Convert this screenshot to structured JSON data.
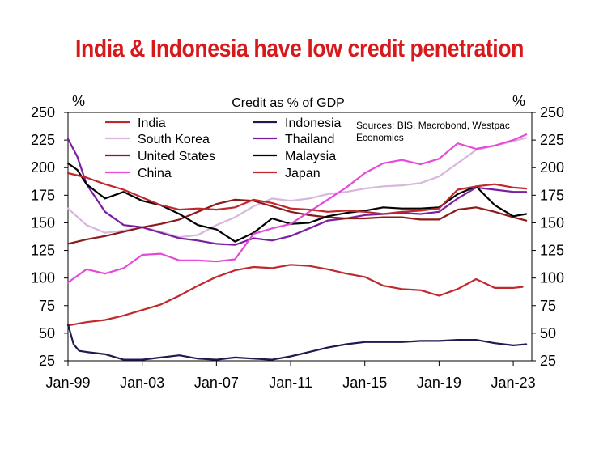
{
  "title": "India & Indonesia have low credit penetration",
  "colors": {
    "title": "#d7191c"
  },
  "chart_data": {
    "type": "line",
    "subtitle": "Credit as % of GDP",
    "left_unit": "%",
    "right_unit": "%",
    "source": [
      "Sources: BIS, Macrobond, Westpac",
      "Economics"
    ],
    "x_ticks": [
      "Jan-99",
      "Jan-03",
      "Jan-07",
      "Jan-11",
      "Jan-15",
      "Jan-19",
      "Jan-23"
    ],
    "x_range": [
      1999.0,
      2024.0
    ],
    "y_ticks": [
      "250",
      "225",
      "200",
      "175",
      "150",
      "125",
      "100",
      "75",
      "50",
      "25"
    ],
    "ylim": [
      25,
      250
    ],
    "grid": false,
    "legend_position": "top",
    "series": [
      {
        "name": "India",
        "color": "#c0282d",
        "points": [
          [
            1999,
            57
          ],
          [
            2000,
            60
          ],
          [
            2001,
            62
          ],
          [
            2002,
            66
          ],
          [
            2003,
            71
          ],
          [
            2004,
            76
          ],
          [
            2005,
            84
          ],
          [
            2006,
            93
          ],
          [
            2007,
            101
          ],
          [
            2008,
            107
          ],
          [
            2009,
            110
          ],
          [
            2010,
            109
          ],
          [
            2011,
            112
          ],
          [
            2012,
            111
          ],
          [
            2013,
            108
          ],
          [
            2014,
            104
          ],
          [
            2015,
            101
          ],
          [
            2016,
            93
          ],
          [
            2017,
            90
          ],
          [
            2018,
            89
          ],
          [
            2019,
            84
          ],
          [
            2020,
            90
          ],
          [
            2021,
            99
          ],
          [
            2022,
            91
          ],
          [
            2023,
            91
          ],
          [
            2023.5,
            92
          ]
        ]
      },
      {
        "name": "Indonesia",
        "color": "#1e1b4f",
        "points": [
          [
            1999,
            58
          ],
          [
            1999.3,
            40
          ],
          [
            1999.6,
            34
          ],
          [
            2000,
            33
          ],
          [
            2001,
            31
          ],
          [
            2002,
            26
          ],
          [
            2003,
            26
          ],
          [
            2004,
            28
          ],
          [
            2005,
            30
          ],
          [
            2006,
            27
          ],
          [
            2007,
            26
          ],
          [
            2008,
            28
          ],
          [
            2009,
            27
          ],
          [
            2010,
            26
          ],
          [
            2011,
            29
          ],
          [
            2012,
            33
          ],
          [
            2013,
            37
          ],
          [
            2014,
            40
          ],
          [
            2015,
            42
          ],
          [
            2016,
            42
          ],
          [
            2017,
            42
          ],
          [
            2018,
            43
          ],
          [
            2019,
            43
          ],
          [
            2020,
            44
          ],
          [
            2021,
            44
          ],
          [
            2022,
            41
          ],
          [
            2023,
            39
          ],
          [
            2023.7,
            40
          ]
        ]
      },
      {
        "name": "South Korea",
        "color": "#d9b6dd",
        "points": [
          [
            1999,
            163
          ],
          [
            2000,
            148
          ],
          [
            2001,
            141
          ],
          [
            2002,
            143
          ],
          [
            2003,
            146
          ],
          [
            2004,
            142
          ],
          [
            2005,
            137
          ],
          [
            2006,
            139
          ],
          [
            2007,
            148
          ],
          [
            2008,
            155
          ],
          [
            2009,
            165
          ],
          [
            2010,
            172
          ],
          [
            2011,
            170
          ],
          [
            2012,
            172
          ],
          [
            2013,
            176
          ],
          [
            2014,
            178
          ],
          [
            2015,
            181
          ],
          [
            2016,
            183
          ],
          [
            2017,
            184
          ],
          [
            2018,
            186
          ],
          [
            2019,
            192
          ],
          [
            2020,
            204
          ],
          [
            2021,
            216
          ],
          [
            2022,
            220
          ],
          [
            2023,
            224
          ],
          [
            2023.7,
            227
          ]
        ]
      },
      {
        "name": "Thailand",
        "color": "#7b1fa2",
        "points": [
          [
            1999,
            226
          ],
          [
            1999.5,
            210
          ],
          [
            2000,
            185
          ],
          [
            2001,
            160
          ],
          [
            2002,
            148
          ],
          [
            2003,
            146
          ],
          [
            2004,
            141
          ],
          [
            2005,
            136
          ],
          [
            2006,
            134
          ],
          [
            2007,
            131
          ],
          [
            2008,
            130
          ],
          [
            2009,
            136
          ],
          [
            2010,
            134
          ],
          [
            2011,
            138
          ],
          [
            2012,
            145
          ],
          [
            2013,
            152
          ],
          [
            2014,
            154
          ],
          [
            2015,
            157
          ],
          [
            2016,
            158
          ],
          [
            2017,
            159
          ],
          [
            2018,
            158
          ],
          [
            2019,
            160
          ],
          [
            2020,
            172
          ],
          [
            2021,
            182
          ],
          [
            2022,
            180
          ],
          [
            2023,
            178
          ],
          [
            2023.7,
            178
          ]
        ]
      },
      {
        "name": "United States",
        "color": "#8b1a1a",
        "points": [
          [
            1999,
            131
          ],
          [
            2000,
            135
          ],
          [
            2001,
            138
          ],
          [
            2002,
            142
          ],
          [
            2003,
            146
          ],
          [
            2004,
            149
          ],
          [
            2005,
            153
          ],
          [
            2006,
            160
          ],
          [
            2007,
            167
          ],
          [
            2008,
            171
          ],
          [
            2009,
            170
          ],
          [
            2010,
            165
          ],
          [
            2011,
            160
          ],
          [
            2012,
            157
          ],
          [
            2013,
            155
          ],
          [
            2014,
            154
          ],
          [
            2015,
            154
          ],
          [
            2016,
            155
          ],
          [
            2017,
            155
          ],
          [
            2018,
            153
          ],
          [
            2019,
            153
          ],
          [
            2020,
            162
          ],
          [
            2021,
            164
          ],
          [
            2022,
            160
          ],
          [
            2023,
            155
          ],
          [
            2023.7,
            152
          ]
        ]
      },
      {
        "name": "Malaysia",
        "color": "#000000",
        "points": [
          [
            1999,
            204
          ],
          [
            1999.5,
            198
          ],
          [
            2000,
            185
          ],
          [
            2001,
            172
          ],
          [
            2002,
            178
          ],
          [
            2003,
            170
          ],
          [
            2004,
            166
          ],
          [
            2005,
            158
          ],
          [
            2006,
            148
          ],
          [
            2007,
            144
          ],
          [
            2008,
            133
          ],
          [
            2009,
            141
          ],
          [
            2010,
            154
          ],
          [
            2011,
            149
          ],
          [
            2012,
            150
          ],
          [
            2013,
            156
          ],
          [
            2014,
            159
          ],
          [
            2015,
            161
          ],
          [
            2016,
            164
          ],
          [
            2017,
            163
          ],
          [
            2018,
            163
          ],
          [
            2019,
            164
          ],
          [
            2020,
            176
          ],
          [
            2021,
            183
          ],
          [
            2022,
            166
          ],
          [
            2023,
            156
          ],
          [
            2023.7,
            158
          ]
        ]
      },
      {
        "name": "China",
        "color": "#e64ad8",
        "points": [
          [
            1999,
            96
          ],
          [
            2000,
            108
          ],
          [
            2001,
            104
          ],
          [
            2002,
            109
          ],
          [
            2003,
            121
          ],
          [
            2004,
            122
          ],
          [
            2005,
            116
          ],
          [
            2006,
            116
          ],
          [
            2007,
            115
          ],
          [
            2008,
            117
          ],
          [
            2009,
            140
          ],
          [
            2010,
            145
          ],
          [
            2011,
            149
          ],
          [
            2012,
            160
          ],
          [
            2013,
            171
          ],
          [
            2014,
            182
          ],
          [
            2015,
            195
          ],
          [
            2016,
            204
          ],
          [
            2017,
            207
          ],
          [
            2018,
            203
          ],
          [
            2019,
            208
          ],
          [
            2020,
            222
          ],
          [
            2021,
            217
          ],
          [
            2022,
            220
          ],
          [
            2023,
            225
          ],
          [
            2023.7,
            230
          ]
        ]
      },
      {
        "name": "Japan",
        "color": "#c0282d",
        "points": [
          [
            1999,
            195
          ],
          [
            2000,
            191
          ],
          [
            2001,
            185
          ],
          [
            2002,
            180
          ],
          [
            2003,
            173
          ],
          [
            2004,
            166
          ],
          [
            2005,
            162
          ],
          [
            2006,
            163
          ],
          [
            2007,
            162
          ],
          [
            2008,
            164
          ],
          [
            2009,
            171
          ],
          [
            2010,
            168
          ],
          [
            2011,
            163
          ],
          [
            2012,
            162
          ],
          [
            2013,
            160
          ],
          [
            2014,
            161
          ],
          [
            2015,
            160
          ],
          [
            2016,
            158
          ],
          [
            2017,
            160
          ],
          [
            2018,
            161
          ],
          [
            2019,
            163
          ],
          [
            2020,
            180
          ],
          [
            2021,
            183
          ],
          [
            2022,
            185
          ],
          [
            2023,
            182
          ],
          [
            2023.7,
            181
          ]
        ]
      }
    ]
  }
}
